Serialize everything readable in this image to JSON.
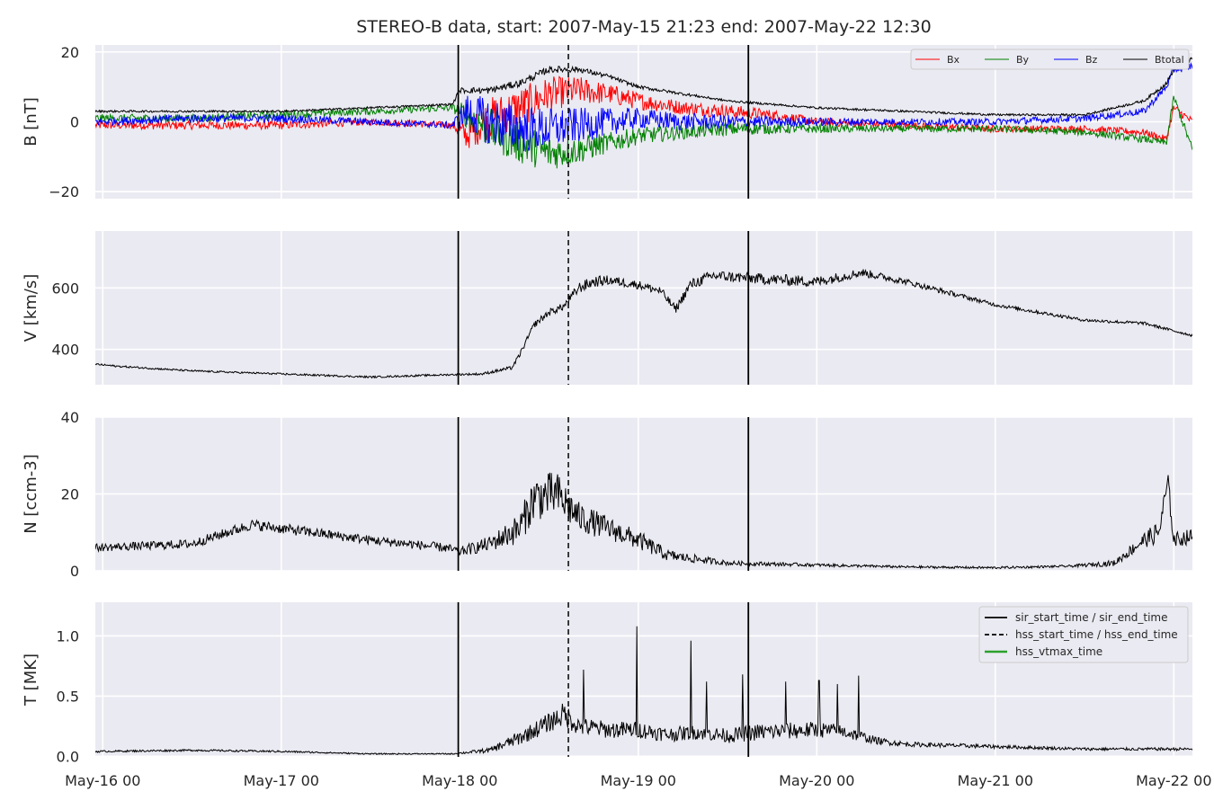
{
  "chart_data": {
    "title": "STEREO-B data, start: 2007-May-15 21:23  end: 2007-May-22 12:30",
    "type": "line",
    "x_axis": {
      "unit": "hours from May-16 00",
      "range_hours": [
        -1.0,
        146.5
      ],
      "tick_hours": [
        0,
        24,
        48,
        72,
        96,
        120,
        144
      ],
      "tick_labels": [
        "May-16 00",
        "May-17 00",
        "May-18 00",
        "May-19 00",
        "May-20 00",
        "May-21 00",
        "May-22 00"
      ]
    },
    "event_markers": {
      "sir_start_time_hours": 47.8,
      "hss_start_time_hours": 62.6,
      "sir_end_time_hours": 86.8
    },
    "panels": [
      {
        "ylabel": "B [nT]",
        "ylim": [
          -22,
          22
        ],
        "yticks": [
          -20,
          0,
          20
        ],
        "ytick_labels": [
          "−20",
          "0",
          "20"
        ],
        "legend": [
          "Bx",
          "By",
          "Bz",
          "Btotal"
        ],
        "series": [
          {
            "name": "Bx",
            "color": "#ff0000",
            "type": "noise",
            "x": [
              -1,
              12,
              24,
              36,
              47,
              49,
              52,
              56,
              60,
              64,
              68,
              72,
              78,
              84,
              90,
              96,
              108,
              120,
              132,
              140,
              143,
              144,
              146.5
            ],
            "y": [
              -1,
              -1,
              -1,
              0,
              -1,
              -4,
              1,
              4,
              8,
              9,
              8,
              6,
              4,
              3,
              2,
              0,
              -1,
              -2,
              -2,
              -3,
              -5,
              4,
              0
            ],
            "amp": [
              1.2,
              1.2,
              1.2,
              1,
              1,
              4,
              6,
              6,
              5,
              4,
              3,
              2.5,
              2,
              2,
              1.5,
              1.2,
              1,
              1,
              1,
              1,
              1,
              1.2,
              1.2
            ]
          },
          {
            "name": "By",
            "color": "#008000",
            "type": "noise",
            "x": [
              -1,
              12,
              24,
              36,
              47,
              49,
              52,
              56,
              60,
              64,
              68,
              72,
              78,
              84,
              90,
              96,
              108,
              120,
              132,
              140,
              143,
              144,
              146.5
            ],
            "y": [
              1,
              1,
              2,
              3,
              4,
              2,
              -2,
              -6,
              -9,
              -8,
              -6,
              -4,
              -3,
              -2,
              -2,
              -2,
              -2,
              -2,
              -3,
              -5,
              -6,
              7,
              -8
            ],
            "amp": [
              1.2,
              1.2,
              1.2,
              1,
              1,
              4,
              6,
              6,
              5,
              4,
              3,
              2.5,
              2,
              2,
              1.5,
              1.2,
              1,
              1,
              1,
              1,
              1,
              1.2,
              1.2
            ]
          },
          {
            "name": "Bz",
            "color": "#0000ff",
            "type": "noise",
            "x": [
              -1,
              12,
              24,
              36,
              47,
              49,
              52,
              56,
              60,
              64,
              68,
              72,
              78,
              84,
              90,
              96,
              108,
              120,
              132,
              140,
              143,
              144,
              146.5
            ],
            "y": [
              0,
              1,
              1,
              0,
              -1,
              3,
              0,
              -2,
              -2,
              -1,
              0,
              1,
              0,
              0,
              0,
              0,
              0,
              0,
              1,
              3,
              10,
              15,
              16
            ],
            "amp": [
              1.2,
              1.2,
              1.2,
              1,
              1,
              5,
              7,
              7,
              6,
              5,
              4,
              3,
              2.5,
              2,
              1.5,
              1.2,
              1,
              1,
              1,
              1,
              1,
              1.2,
              1.2
            ]
          },
          {
            "name": "Btotal",
            "color": "#000000",
            "type": "noise",
            "x": [
              -1,
              12,
              24,
              36,
              47,
              48,
              52,
              56,
              60,
              64,
              68,
              72,
              78,
              84,
              90,
              96,
              108,
              120,
              132,
              140,
              143,
              144,
              146.5
            ],
            "y": [
              3,
              3,
              3,
              4,
              5,
              9,
              9,
              11,
              15,
              15,
              13,
              10,
              8,
              6,
              5,
              4,
              3,
              2,
              2,
              6,
              11,
              15,
              18
            ],
            "amp": [
              0.3,
              0.3,
              0.3,
              0.3,
              0.3,
              0.8,
              1,
              1,
              1,
              0.8,
              0.6,
              0.5,
              0.4,
              0.3,
              0.3,
              0.3,
              0.3,
              0.3,
              0.3,
              0.4,
              0.6,
              0.6,
              0.6
            ]
          }
        ]
      },
      {
        "ylabel": "V [km/s]",
        "ylim": [
          285,
          785
        ],
        "yticks": [
          400,
          600
        ],
        "ytick_labels": [
          "400",
          "600"
        ],
        "series": [
          {
            "name": "V",
            "color": "#000000",
            "type": "noise",
            "x": [
              -1,
              2,
              12,
              24,
              36,
              47,
              51,
              55,
              56,
              58,
              60,
              62,
              64,
              66,
              68,
              72,
              75,
              77,
              79,
              82,
              88,
              96,
              102,
              108,
              120,
              132,
              140,
              146.5
            ],
            "y": [
              352,
              345,
              330,
              320,
              310,
              318,
              320,
              340,
              380,
              480,
              520,
              540,
              600,
              620,
              625,
              610,
              590,
              530,
              610,
              640,
              630,
              620,
              650,
              620,
              545,
              495,
              485,
              445
            ],
            "amp": [
              3,
              3,
              3,
              3,
              3,
              3,
              4,
              6,
              8,
              10,
              12,
              12,
              18,
              18,
              16,
              14,
              14,
              14,
              18,
              18,
              18,
              18,
              14,
              10,
              6,
              5,
              5,
              4
            ]
          }
        ]
      },
      {
        "ylabel": "N [ccm-3]",
        "ylim": [
          0,
          40
        ],
        "yticks": [
          0,
          20,
          40
        ],
        "ytick_labels": [
          "0",
          "20",
          "40"
        ],
        "series": [
          {
            "name": "N",
            "color": "#000000",
            "type": "noise",
            "x": [
              -1,
              12,
              20,
              36,
              46,
              48,
              52,
              56,
              58,
              61,
              64,
              68,
              72,
              76,
              84,
              96,
              108,
              120,
              130,
              136,
              140,
              142,
              143.2,
              144,
              146.5
            ],
            "y": [
              6,
              7,
              12,
              8,
              6,
              5,
              7,
              11,
              19,
              20,
              14,
              11,
              8,
              4,
              2,
              1.5,
              1,
              0.8,
              1.2,
              2,
              8,
              10,
              23,
              8,
              9
            ],
            "amp": [
              1,
              1.2,
              1.4,
              1.2,
              1.2,
              1.2,
              2,
              4,
              6,
              6,
              4,
              3,
              2.5,
              1.5,
              0.6,
              0.4,
              0.3,
              0.3,
              0.3,
              0.8,
              2,
              3,
              3,
              2,
              2
            ]
          }
        ]
      },
      {
        "ylabel": "T [MK]",
        "ylim": [
          -0.005,
          1.28
        ],
        "yticks": [
          0.0,
          0.5,
          1.0
        ],
        "ytick_labels": [
          "0.0",
          "0.5",
          "1.0"
        ],
        "legend": [
          "sir_start_time / sir_end_time",
          "hss_start_time / hss_end_time",
          "hss_vtmax_time"
        ],
        "legend_colors": [
          "#000000",
          "#000000",
          "#2ca02c"
        ],
        "series": [
          {
            "name": "T",
            "color": "#000000",
            "type": "noise",
            "x": [
              -1,
              12,
              24,
              36,
              47,
              52,
              56,
              60,
              62,
              64,
              68,
              72,
              76,
              80,
              84,
              88,
              96,
              100,
              104,
              108,
              120,
              132,
              140,
              146.5
            ],
            "y": [
              0.04,
              0.05,
              0.04,
              0.02,
              0.02,
              0.05,
              0.15,
              0.28,
              0.35,
              0.25,
              0.22,
              0.22,
              0.18,
              0.2,
              0.17,
              0.2,
              0.22,
              0.2,
              0.13,
              0.1,
              0.08,
              0.06,
              0.06,
              0.06
            ],
            "amp": [
              0.008,
              0.008,
              0.008,
              0.005,
              0.005,
              0.02,
              0.06,
              0.08,
              0.1,
              0.08,
              0.07,
              0.07,
              0.06,
              0.06,
              0.06,
              0.07,
              0.07,
              0.06,
              0.03,
              0.02,
              0.015,
              0.012,
              0.012,
              0.012
            ],
            "spikes": [
              [
                64.6,
                0.72
              ],
              [
                71.8,
                1.08
              ],
              [
                79.1,
                0.96
              ],
              [
                81.2,
                0.62
              ],
              [
                86.0,
                0.68
              ],
              [
                91.8,
                0.62
              ],
              [
                96.3,
                0.63
              ],
              [
                98.8,
                0.6
              ],
              [
                101.6,
                0.67
              ]
            ]
          }
        ]
      }
    ]
  }
}
